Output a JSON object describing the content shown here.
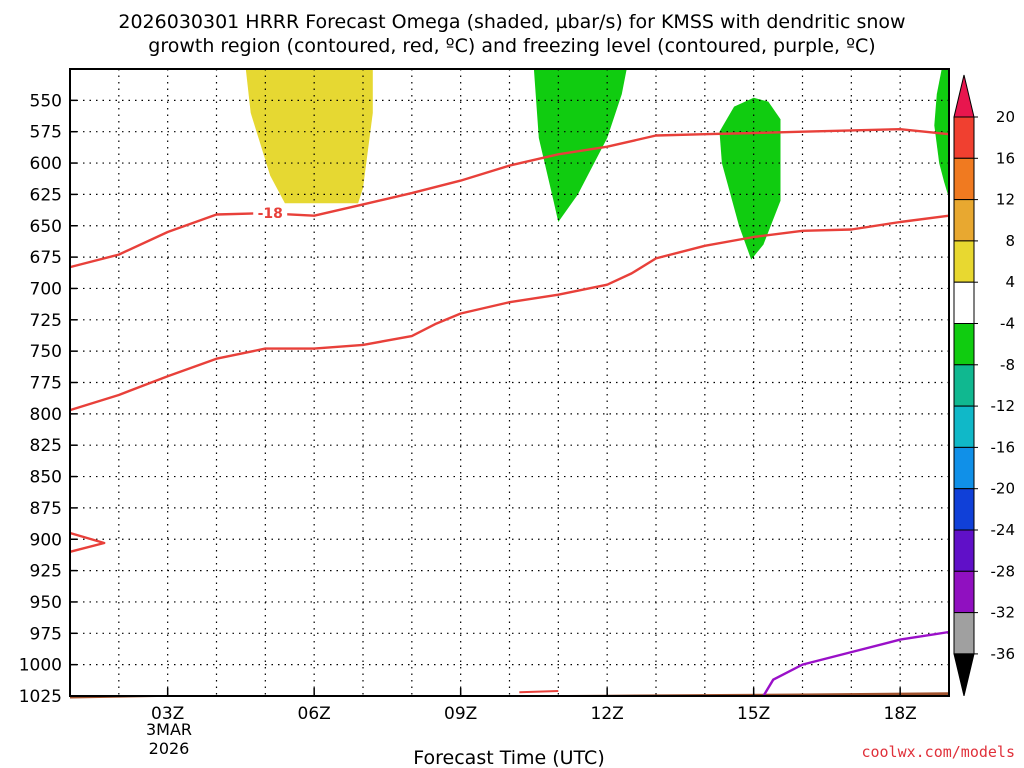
{
  "chart_data": {
    "type": "contour",
    "title_line1": "2026030301 HRRR Forecast Omega (shaded, µbar/s) for KMSS with dendritic snow",
    "title_line2": "growth region (contoured, red, ºC) and freezing level (contoured, purple, ºC)",
    "xlabel": "Forecast Time (UTC)",
    "ylabel": "",
    "x_range_hours": [
      1,
      19
    ],
    "y_range_mb": [
      1025,
      525
    ],
    "y_ticks": [
      {
        "p": 550,
        "label": "550"
      },
      {
        "p": 575,
        "label": "575"
      },
      {
        "p": 600,
        "label": "600"
      },
      {
        "p": 625,
        "label": "625"
      },
      {
        "p": 650,
        "label": "650"
      },
      {
        "p": 675,
        "label": "675"
      },
      {
        "p": 700,
        "label": "700"
      },
      {
        "p": 725,
        "label": "725"
      },
      {
        "p": 750,
        "label": "750"
      },
      {
        "p": 775,
        "label": "775"
      },
      {
        "p": 800,
        "label": "800"
      },
      {
        "p": 825,
        "label": "825"
      },
      {
        "p": 850,
        "label": "850"
      },
      {
        "p": 875,
        "label": "875"
      },
      {
        "p": 900,
        "label": "900"
      },
      {
        "p": 925,
        "label": "925"
      },
      {
        "p": 950,
        "label": "950"
      },
      {
        "p": 975,
        "label": "975"
      },
      {
        "p": 1000,
        "label": "1000"
      },
      {
        "p": 1025,
        "label": "1025"
      }
    ],
    "x_ticks": [
      {
        "h": 3,
        "label": "03Z"
      },
      {
        "h": 6,
        "label": "06Z"
      },
      {
        "h": 9,
        "label": "09Z"
      },
      {
        "h": 12,
        "label": "12Z"
      },
      {
        "h": 15,
        "label": "15Z"
      },
      {
        "h": 18,
        "label": "18Z"
      }
    ],
    "date_label_line1": "3MAR",
    "date_label_line2": "2026",
    "grid": true,
    "colorbar": {
      "levels": [
        "20",
        "16",
        "12",
        "8",
        "4",
        "-4",
        "-8",
        "-12",
        "-16",
        "-20",
        "-24",
        "-28",
        "-32",
        "-36"
      ],
      "colors": [
        "#e8164e",
        "#f04030",
        "#f07a20",
        "#e8a830",
        "#e8d830",
        "#ffffff",
        "#10cc10",
        "#10b890",
        "#10b8c8",
        "#1090e8",
        "#1040d8",
        "#6010c8",
        "#9010c0",
        "#a0a0a0",
        "#000000"
      ]
    },
    "omega_regions": [
      {
        "name": "updraft-0530-0700",
        "range": "4 to 8",
        "color": "#e6d832",
        "points": [
          [
            4.6,
            525
          ],
          [
            7.2,
            525
          ],
          [
            7.2,
            560
          ],
          [
            7.0,
            620
          ],
          [
            6.9,
            632
          ],
          [
            5.4,
            632
          ],
          [
            5.1,
            610
          ],
          [
            4.7,
            560
          ]
        ]
      },
      {
        "name": "downdraft-1030-1230",
        "range": "-4 to -8",
        "color": "#10cc10",
        "points": [
          [
            10.5,
            525
          ],
          [
            12.4,
            525
          ],
          [
            12.3,
            545
          ],
          [
            12.0,
            580
          ],
          [
            11.4,
            625
          ],
          [
            11.0,
            647
          ],
          [
            10.9,
            630
          ],
          [
            10.6,
            580
          ]
        ]
      },
      {
        "name": "downdraft-1430-1530",
        "range": "-4 to -8",
        "color": "#10cc10",
        "points": [
          [
            15.0,
            548
          ],
          [
            15.3,
            551
          ],
          [
            15.55,
            565
          ],
          [
            15.55,
            630
          ],
          [
            15.2,
            665
          ],
          [
            14.95,
            677
          ],
          [
            14.7,
            650
          ],
          [
            14.35,
            600
          ],
          [
            14.3,
            575
          ],
          [
            14.6,
            555
          ]
        ]
      },
      {
        "name": "downdraft-1900",
        "range": "-4 to -8",
        "color": "#10cc10",
        "points": [
          [
            18.85,
            525
          ],
          [
            19.0,
            525
          ],
          [
            19.0,
            628
          ],
          [
            18.9,
            615
          ],
          [
            18.8,
            600
          ],
          [
            18.7,
            570
          ],
          [
            18.75,
            545
          ]
        ]
      }
    ],
    "dgz_contours": [
      {
        "name": "upper",
        "level_label": "-18",
        "label_at": [
          5.1,
          640
        ],
        "points": [
          [
            1,
            683
          ],
          [
            2,
            673
          ],
          [
            3,
            655
          ],
          [
            4,
            641
          ],
          [
            5,
            640
          ],
          [
            6,
            642
          ],
          [
            7,
            633
          ],
          [
            8,
            624
          ],
          [
            9,
            614
          ],
          [
            10,
            602
          ],
          [
            11,
            593
          ],
          [
            12,
            587
          ],
          [
            13,
            578
          ],
          [
            14,
            577
          ],
          [
            15,
            576
          ],
          [
            16,
            575
          ],
          [
            17,
            574
          ],
          [
            18,
            573
          ],
          [
            19,
            577
          ]
        ]
      },
      {
        "name": "lower",
        "level_label": "",
        "points": [
          [
            1,
            797
          ],
          [
            2,
            785
          ],
          [
            3,
            770
          ],
          [
            4,
            756
          ],
          [
            5,
            748
          ],
          [
            6,
            748
          ],
          [
            7,
            745
          ],
          [
            8,
            738
          ],
          [
            8.5,
            728
          ],
          [
            9,
            720
          ],
          [
            10,
            711
          ],
          [
            11,
            705
          ],
          [
            12,
            697
          ],
          [
            12.5,
            688
          ],
          [
            13,
            676
          ],
          [
            14,
            666
          ],
          [
            15,
            659
          ],
          [
            16,
            654
          ],
          [
            17,
            653
          ],
          [
            18,
            647
          ],
          [
            19,
            642
          ]
        ]
      },
      {
        "name": "lowlevel-hook",
        "level_label": "",
        "points": [
          [
            1,
            895
          ],
          [
            1.7,
            903
          ],
          [
            1,
            910
          ]
        ]
      }
    ],
    "freezing_level": {
      "name": "freezing-level",
      "points": [
        [
          15.2,
          1025
        ],
        [
          15.4,
          1012
        ],
        [
          16,
          1000
        ],
        [
          17,
          990
        ],
        [
          18,
          980
        ],
        [
          19,
          974
        ]
      ]
    },
    "terrain": {
      "color": "#a0522d",
      "points": [
        [
          1,
          1027
        ],
        [
          4,
          1025
        ],
        [
          8,
          1025
        ],
        [
          12,
          1024
        ],
        [
          16,
          1023
        ],
        [
          19,
          1022
        ]
      ]
    },
    "surface_contour": {
      "name": "surface-red-segment",
      "points": [
        [
          10.2,
          1022
        ],
        [
          11,
          1021
        ]
      ]
    },
    "credit": "coolwx.com/models"
  }
}
